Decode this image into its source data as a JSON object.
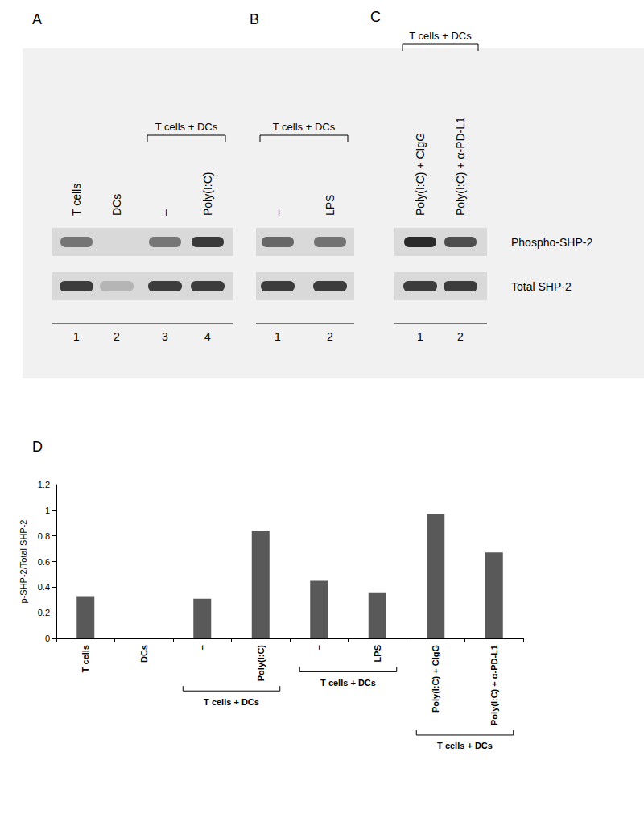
{
  "figure": {
    "panels": [
      {
        "letter": "A",
        "group_label": "T cells + DCs",
        "group_lanes": [
          2,
          3
        ],
        "lanes": [
          {
            "label": "T cells",
            "number": 1
          },
          {
            "label": "DCs",
            "number": 2
          },
          {
            "label": "–",
            "number": 3
          },
          {
            "label": "Poly(I:C)",
            "number": 4
          }
        ]
      },
      {
        "letter": "B",
        "group_label": "T cells + DCs",
        "group_lanes": [
          0,
          1
        ],
        "lanes": [
          {
            "label": "–",
            "number": 1
          },
          {
            "label": "LPS",
            "number": 2
          }
        ]
      },
      {
        "letter": "C",
        "group_label": "T cells + DCs",
        "group_lanes": [
          0,
          1
        ],
        "lanes": [
          {
            "label": "Poly(I:C) + CIgG",
            "number": 1
          },
          {
            "label": "Poly(I:C) + α-PD-L1",
            "number": 2
          }
        ]
      }
    ],
    "rows": [
      "Phospho-SHP-2",
      "Total SHP-2"
    ],
    "chart_panel_letter": "D"
  },
  "chart_data": {
    "type": "bar",
    "y_label": "p-SHP-2/Total SHP-2",
    "categories": [
      "T cells",
      "DCs",
      "–",
      "Poly(I:C)",
      "–",
      "LPS",
      "Poly(I:C) + CIgG",
      "Poly(I:C) + α-PD-L1"
    ],
    "values": [
      0.33,
      0,
      0.31,
      0.84,
      0.45,
      0.36,
      0.97,
      0.67
    ],
    "color": "#595959",
    "ylim": [
      0,
      1.2
    ],
    "yticks": [
      0,
      0.2,
      0.4,
      0.6,
      0.8,
      1,
      1.2
    ],
    "grid": false,
    "groups": [
      {
        "label": "T cells + DCs",
        "categories": [
          2,
          3
        ]
      },
      {
        "label": "T cells + DCs",
        "categories": [
          4,
          5
        ]
      },
      {
        "label": "T cells + DCs",
        "categories": [
          6,
          7
        ]
      }
    ]
  }
}
